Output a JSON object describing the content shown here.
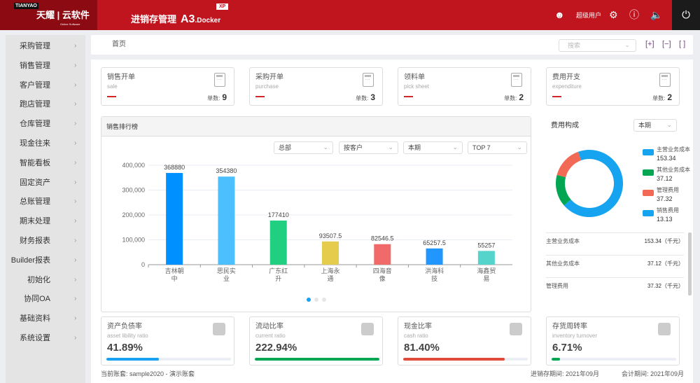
{
  "header": {
    "logo_tag": "TIANYAO",
    "logo_brand": "天耀 | 云软件",
    "logo_sub": "Online Software",
    "title": "进销存管理",
    "product": "A3",
    "product_suffix": ".Docker",
    "badge": "XP",
    "user": "超级用户",
    "colors": {
      "header": "#c0141f",
      "logo_bg": "#8c0a12",
      "power_bg": "#1b1b1b"
    }
  },
  "sidebar": {
    "items": [
      {
        "label": "采购管理"
      },
      {
        "label": "销售管理"
      },
      {
        "label": "客户管理"
      },
      {
        "label": "跑店管理"
      },
      {
        "label": "仓库管理"
      },
      {
        "label": "现金往来"
      },
      {
        "label": "智能看板"
      },
      {
        "label": "固定资产"
      },
      {
        "label": "总账管理"
      },
      {
        "label": "期末处理"
      },
      {
        "label": "财务报表"
      },
      {
        "label": "Builder报表"
      },
      {
        "label": "初始化"
      },
      {
        "label": "协同OA"
      },
      {
        "label": "基础资料"
      },
      {
        "label": "系统设置"
      }
    ]
  },
  "breadcrumb": {
    "home": "首页"
  },
  "search": {
    "placeholder": "搜索"
  },
  "cards": [
    {
      "cn": "销售开单",
      "en": "sale",
      "count_label": "单数:",
      "count": "9"
    },
    {
      "cn": "采购开单",
      "en": "purchase",
      "count_label": "单数:",
      "count": "3"
    },
    {
      "cn": "领料单",
      "en": "pick sheet",
      "count_label": "单数:",
      "count": "2"
    },
    {
      "cn": "费用开支",
      "en": "expenditure",
      "count_label": "单数:",
      "count": "2"
    }
  ],
  "sales_rank": {
    "title": "销售排行榜",
    "filters": [
      "总部",
      "按客户",
      "本期",
      "TOP 7"
    ]
  },
  "chart_data": {
    "type": "bar",
    "categories": [
      "吉林朝中",
      "思民实业",
      "广东红升",
      "上海永通",
      "四海音像",
      "洪海科技",
      "海鑫贸易"
    ],
    "values": [
      368880,
      354380,
      177410,
      93507.5,
      82546.5,
      65257.5,
      55257
    ],
    "value_labels": [
      "368880",
      "354380",
      "177410",
      "93507.5",
      "82546.5",
      "65257.5",
      "55257"
    ],
    "colors": [
      "#0090ff",
      "#4cc0ff",
      "#20d080",
      "#e5cc4c",
      "#f06a6a",
      "#2296ff",
      "#55d4cc"
    ],
    "yticks": [
      "0",
      "100,000",
      "200,000",
      "300,000",
      "400,000"
    ],
    "ylim": [
      0,
      400000
    ],
    "grid": true,
    "pagination": {
      "pages": 3,
      "current": 1
    }
  },
  "expense": {
    "title": "费用构成",
    "period": "本期",
    "items": [
      {
        "name": "主营业务成本",
        "value": "153.34",
        "num": 153.34,
        "color": "#16a3ef"
      },
      {
        "name": "其他业务成本",
        "value": "37.12",
        "num": 37.12,
        "color": "#00a651"
      },
      {
        "name": "管理费用",
        "value": "37.32",
        "num": 37.32,
        "color": "#f26a55"
      },
      {
        "name": "销售费用",
        "value": "13.13",
        "num": 13.13,
        "color": "#16a3ef"
      }
    ],
    "unit": "（千元）",
    "list": [
      {
        "name": "主营业务成本",
        "value": "153.34"
      },
      {
        "name": "其他业务成本",
        "value": "37.12"
      },
      {
        "name": "管理费用",
        "value": "37.32"
      }
    ]
  },
  "kpis": [
    {
      "cn": "资产负债率",
      "en": "asset libility ratio",
      "value": "41.89%",
      "fill": 41.89,
      "color": "#1aa0f0"
    },
    {
      "cn": "流动比率",
      "en": "current ratio",
      "value": "222.94%",
      "fill": 100,
      "color": "#00a651"
    },
    {
      "cn": "现金比率",
      "en": "cash ratio",
      "value": "81.40%",
      "fill": 81.4,
      "color": "#e04a3a"
    },
    {
      "cn": "存货周转率",
      "en": "inventory turnover",
      "value": "6.71%",
      "fill": 6.71,
      "color": "#00a651"
    }
  ],
  "footer": {
    "account": "当前账套: sample2020 - 演示账套",
    "inv_period": "进销存期间: 2021年09月",
    "acc_period": "会计期间: 2021年09月"
  }
}
